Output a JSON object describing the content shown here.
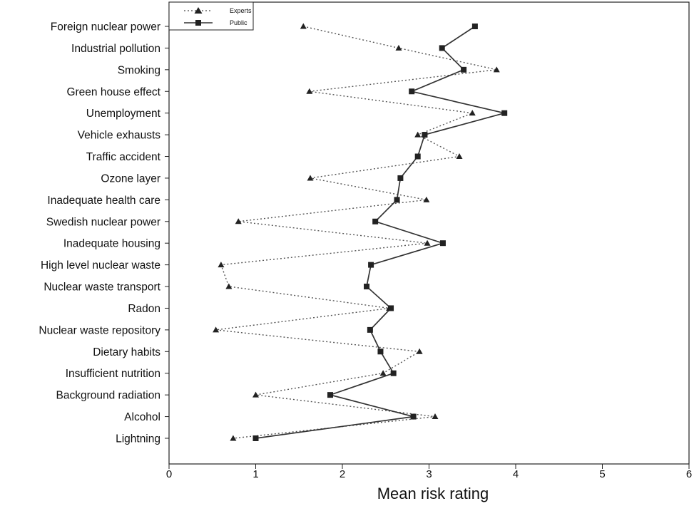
{
  "chart_data": {
    "type": "line",
    "orientation": "horizontal",
    "categories": [
      "Foreign nuclear power",
      "Industrial pollution",
      "Smoking",
      "Green house effect",
      "Unemployment",
      "Vehicle exhausts",
      "Traffic accident",
      "Ozone layer",
      "Inadequate health care",
      "Swedish nuclear power",
      "Inadequate housing",
      "High level nuclear waste",
      "Nuclear waste transport",
      "Radon",
      "Nuclear waste repository",
      "Dietary habits",
      "Insufficient nutrition",
      "Background radiation",
      "Alcohol",
      "Lightning"
    ],
    "series": [
      {
        "name": "Experts",
        "marker": "triangle",
        "line_style": "dotted",
        "color": "#555555",
        "values": [
          1.55,
          2.65,
          3.78,
          1.62,
          3.5,
          2.87,
          3.35,
          1.63,
          2.97,
          0.8,
          2.98,
          0.6,
          0.69,
          2.54,
          0.54,
          2.89,
          2.47,
          1.0,
          3.07,
          0.74
        ]
      },
      {
        "name": "Public",
        "marker": "square",
        "line_style": "solid",
        "color": "#333333",
        "values": [
          3.53,
          3.15,
          3.4,
          2.8,
          3.87,
          2.95,
          2.87,
          2.67,
          2.63,
          2.38,
          3.16,
          2.33,
          2.28,
          2.56,
          2.32,
          2.44,
          2.59,
          1.86,
          2.82,
          1.0
        ]
      }
    ],
    "xlabel": "Mean risk rating",
    "xlim": [
      0,
      6
    ],
    "xticks": [
      "0",
      "1",
      "2",
      "3",
      "4",
      "5",
      "6"
    ],
    "legend": "top-left",
    "grid": false
  }
}
